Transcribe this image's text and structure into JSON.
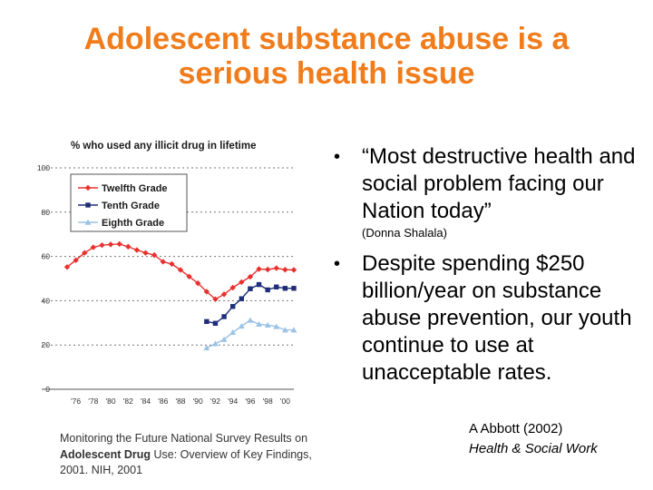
{
  "slide": {
    "title_line1": "Adolescent substance abuse is a",
    "title_line2": "serious health issue",
    "bullet1_text": "“Most destructive health and social problem facing our Nation today”",
    "bullet1_attribution": "(Donna Shalala)",
    "bullet2_text": "Despite spending $250 billion/year on substance abuse prevention, our youth continue to use at unacceptable rates.",
    "source_text_pre": "Monitoring the Future National Survey Results on ",
    "source_text_bold": "Adolescent Drug",
    "source_text_post": " Use: Overview of Key Findings, 2001.   NIH, 2001",
    "citation_line1": "A Abbott (2002)",
    "citation_line2": "Health & Social Work",
    "title_color": "#f07c1c"
  },
  "chart_data": {
    "type": "line",
    "title": "% who used any illicit drug in lifetime",
    "ylim": [
      0,
      100
    ],
    "yticks": [
      0,
      20,
      40,
      60,
      80,
      100
    ],
    "xlim": [
      1975,
      2001
    ],
    "xtick_values": [
      1976,
      1978,
      1980,
      1982,
      1984,
      1986,
      1988,
      1990,
      1992,
      1994,
      1996,
      1998,
      2000
    ],
    "xtick_labels": [
      "'76",
      "'78",
      "'80",
      "'82",
      "'84",
      "'86",
      "'88",
      "'90",
      "'92",
      "'94",
      "'96",
      "'98",
      "'00"
    ],
    "grid": "dotted horizontal lines",
    "legend_position": "top-left",
    "series": [
      {
        "name": "Twelfth Grade",
        "color": "#e8312f",
        "marker": "diamond",
        "x": [
          1975,
          1976,
          1977,
          1978,
          1979,
          1980,
          1981,
          1982,
          1983,
          1984,
          1985,
          1986,
          1987,
          1988,
          1989,
          1990,
          1991,
          1992,
          1993,
          1994,
          1995,
          1996,
          1997,
          1998,
          1999,
          2000,
          2001
        ],
        "y": [
          55.2,
          58.3,
          61.6,
          64.1,
          65.1,
          65.4,
          65.6,
          64.4,
          62.9,
          61.6,
          60.6,
          57.6,
          56.6,
          53.9,
          50.9,
          47.9,
          44.1,
          40.7,
          42.9,
          45.9,
          48.4,
          50.8,
          54.3,
          54.1,
          54.7,
          54.0,
          53.9
        ]
      },
      {
        "name": "Tenth Grade",
        "color": "#1f2d7a",
        "marker": "square",
        "x": [
          1991,
          1992,
          1993,
          1994,
          1995,
          1996,
          1997,
          1998,
          1999,
          2000,
          2001
        ],
        "y": [
          30.6,
          29.8,
          32.8,
          37.4,
          40.9,
          45.4,
          47.3,
          44.9,
          46.2,
          45.6,
          45.6
        ]
      },
      {
        "name": "Eighth Grade",
        "color": "#9cc2e5",
        "marker": "triangle",
        "x": [
          1991,
          1992,
          1993,
          1994,
          1995,
          1996,
          1997,
          1998,
          1999,
          2000,
          2001
        ],
        "y": [
          18.7,
          20.6,
          22.5,
          25.7,
          28.5,
          31.2,
          29.4,
          29.0,
          28.3,
          26.8,
          26.8
        ]
      }
    ]
  }
}
